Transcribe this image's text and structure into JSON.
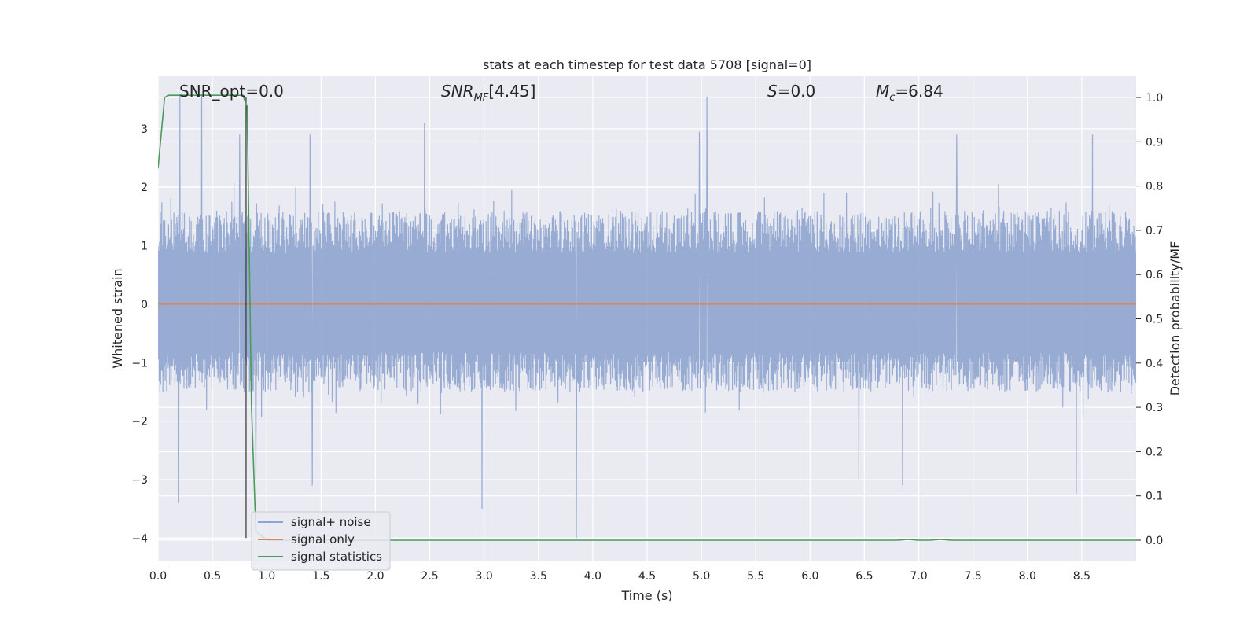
{
  "chart_data": {
    "type": "line",
    "title": "stats at each timestep for test data 5708 [signal=0]",
    "xlabel": "Time (s)",
    "ylabel_left": "Whitened strain",
    "ylabel_right": "Detection probability/MF",
    "xlim": [
      0.0,
      9.0
    ],
    "ylim_left": [
      -4.4,
      3.9
    ],
    "ylim_right": [
      -0.048,
      1.048
    ],
    "xticks": [
      "0.0",
      "0.5",
      "1.0",
      "1.5",
      "2.0",
      "2.5",
      "3.0",
      "3.5",
      "4.0",
      "4.5",
      "5.0",
      "5.5",
      "6.0",
      "6.5",
      "7.0",
      "7.5",
      "8.0",
      "8.5"
    ],
    "yticks_left": [
      "3",
      "2",
      "1",
      "0",
      "−1",
      "−2",
      "−3",
      "−4"
    ],
    "yticks_right": [
      "1.0",
      "0.9",
      "0.8",
      "0.7",
      "0.6",
      "0.5",
      "0.4",
      "0.3",
      "0.2",
      "0.1",
      "0.0"
    ],
    "grid": true,
    "legend_position": "lower-left",
    "annotations": {
      "snr_opt": "SNR_opt=0.0",
      "snr_mf": "[4.45]",
      "s_val": "=0.0",
      "mc_val": "=6.84"
    },
    "marker_time": 0.81,
    "series": [
      {
        "name": "signal+ noise",
        "axis": "left",
        "color": "#8fa5cf",
        "kind": "noise",
        "typical_range": [
          -1.5,
          1.6
        ],
        "peaks": [
          {
            "x": 0.2,
            "y": 3.6
          },
          {
            "x": 0.4,
            "y": 3.6
          },
          {
            "x": 0.75,
            "y": 2.9
          },
          {
            "x": 1.4,
            "y": 2.9
          },
          {
            "x": 2.45,
            "y": 3.1
          },
          {
            "x": 5.05,
            "y": 3.55
          },
          {
            "x": 4.98,
            "y": 2.95
          },
          {
            "x": 8.6,
            "y": 2.9
          },
          {
            "x": 7.35,
            "y": 2.9
          },
          {
            "x": 0.19,
            "y": -3.4
          },
          {
            "x": 1.42,
            "y": -3.1
          },
          {
            "x": 2.98,
            "y": -3.5
          },
          {
            "x": 3.85,
            "y": -4.0
          },
          {
            "x": 6.45,
            "y": -3.0
          },
          {
            "x": 6.85,
            "y": -3.1
          },
          {
            "x": 8.45,
            "y": -3.25
          },
          {
            "x": 0.9,
            "y": -3.0
          }
        ]
      },
      {
        "name": "signal only",
        "axis": "left",
        "color": "#dd8452",
        "x": [
          0.0,
          9.0
        ],
        "y": [
          0.0,
          0.0
        ]
      },
      {
        "name": "signal statistics",
        "axis": "right",
        "color": "#4a9a5b",
        "x": [
          0.0,
          0.06,
          0.1,
          0.2,
          0.5,
          0.78,
          0.82,
          0.86,
          0.9,
          1.0,
          6.8,
          6.9,
          7.0,
          7.1,
          7.2,
          7.3,
          9.0
        ],
        "y": [
          0.84,
          1.0,
          1.005,
          1.005,
          1.005,
          1.005,
          0.98,
          0.3,
          0.02,
          0.0,
          0.0,
          0.002,
          0.0,
          0.0,
          0.002,
          0.0,
          0.0
        ]
      }
    ]
  }
}
